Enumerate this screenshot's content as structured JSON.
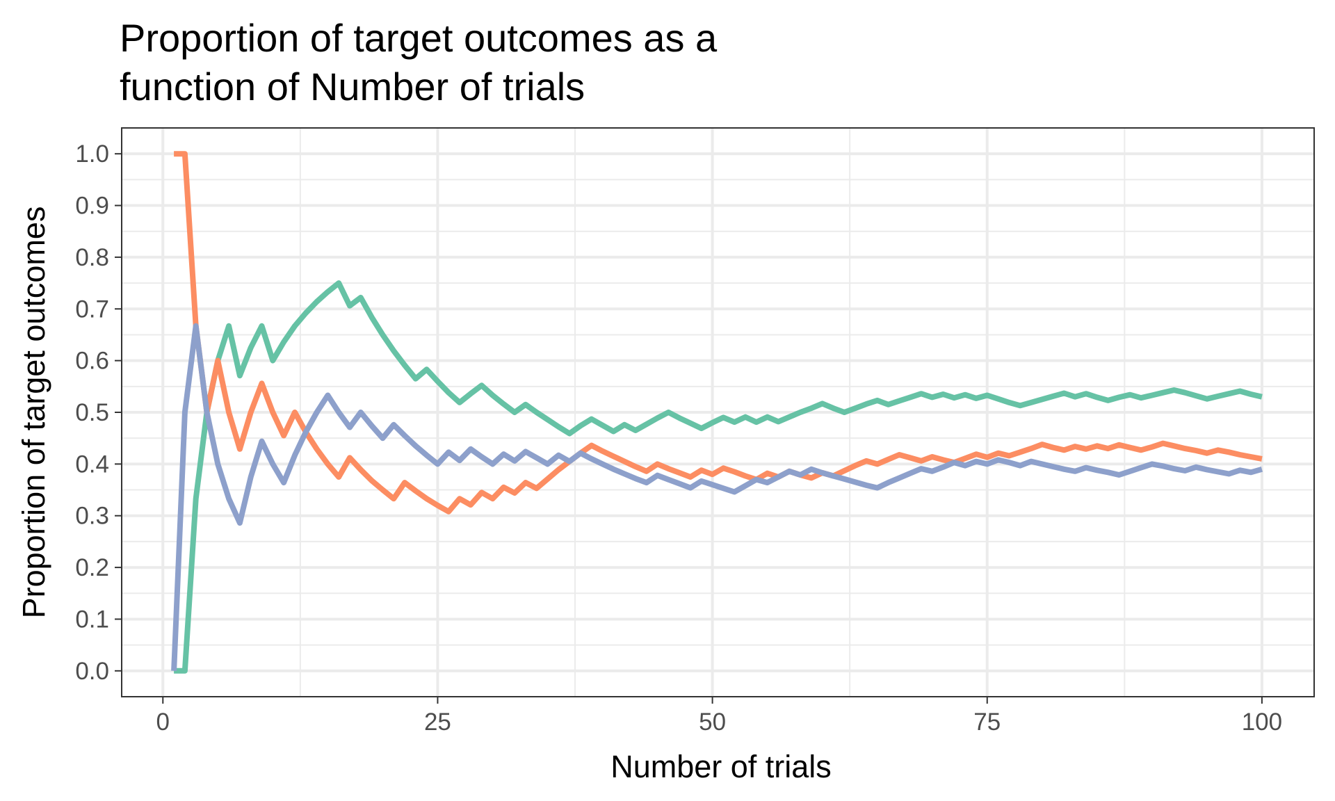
{
  "chart_data": {
    "type": "line",
    "title_lines": [
      "Proportion of target outcomes as a",
      "function of Number of trials"
    ],
    "xlabel": "Number of trials",
    "ylabel": "Proportion of target outcomes",
    "xlim": [
      -3.75,
      104.75
    ],
    "ylim": [
      -0.05,
      1.05
    ],
    "x_ticks": [
      0,
      25,
      50,
      75,
      100
    ],
    "x_tick_labels": [
      "0",
      "25",
      "50",
      "75",
      "100"
    ],
    "y_ticks": [
      0.0,
      0.1,
      0.2,
      0.3,
      0.4,
      0.5,
      0.6,
      0.7,
      0.8,
      0.9,
      1.0
    ],
    "y_tick_labels": [
      "0.0",
      "0.1",
      "0.2",
      "0.3",
      "0.4",
      "0.5",
      "0.6",
      "0.7",
      "0.8",
      "0.9",
      "1.0"
    ],
    "grid": true,
    "legend": "none",
    "series": [
      {
        "color": "#66C2A5",
        "x": [
          1,
          2,
          3,
          4,
          5,
          6,
          7,
          8,
          9,
          10,
          11,
          12,
          13,
          14,
          15,
          16,
          17,
          18,
          19,
          20,
          21,
          22,
          23,
          24,
          25,
          26,
          27,
          28,
          29,
          30,
          31,
          32,
          33,
          34,
          35,
          36,
          37,
          38,
          39,
          40,
          41,
          42,
          43,
          44,
          45,
          46,
          47,
          48,
          49,
          50,
          51,
          52,
          53,
          54,
          55,
          56,
          57,
          58,
          59,
          60,
          61,
          62,
          63,
          64,
          65,
          66,
          67,
          68,
          69,
          70,
          71,
          72,
          73,
          74,
          75,
          76,
          77,
          78,
          79,
          80,
          81,
          82,
          83,
          84,
          85,
          86,
          87,
          88,
          89,
          90,
          91,
          92,
          93,
          94,
          95,
          96,
          97,
          98,
          99,
          100
        ],
        "y": [
          0,
          0,
          0.333,
          0.5,
          0.6,
          0.667,
          0.571,
          0.625,
          0.667,
          0.6,
          0.636,
          0.667,
          0.692,
          0.714,
          0.733,
          0.75,
          0.706,
          0.722,
          0.684,
          0.65,
          0.619,
          0.591,
          0.565,
          0.583,
          0.56,
          0.538,
          0.519,
          0.536,
          0.552,
          0.533,
          0.516,
          0.5,
          0.515,
          0.5,
          0.486,
          0.472,
          0.459,
          0.474,
          0.487,
          0.475,
          0.463,
          0.476,
          0.465,
          0.477,
          0.489,
          0.5,
          0.489,
          0.479,
          0.469,
          0.48,
          0.49,
          0.481,
          0.491,
          0.481,
          0.491,
          0.482,
          0.491,
          0.5,
          0.508,
          0.517,
          0.508,
          0.5,
          0.508,
          0.516,
          0.523,
          0.515,
          0.522,
          0.529,
          0.536,
          0.529,
          0.535,
          0.528,
          0.534,
          0.527,
          0.533,
          0.526,
          0.519,
          0.513,
          0.519,
          0.525,
          0.531,
          0.537,
          0.53,
          0.536,
          0.529,
          0.523,
          0.529,
          0.534,
          0.528,
          0.533,
          0.538,
          0.543,
          0.538,
          0.532,
          0.526,
          0.531,
          0.536,
          0.541,
          0.535,
          0.53
        ]
      },
      {
        "color": "#FC8D62",
        "x": [
          1,
          2,
          3,
          4,
          5,
          6,
          7,
          8,
          9,
          10,
          11,
          12,
          13,
          14,
          15,
          16,
          17,
          18,
          19,
          20,
          21,
          22,
          23,
          24,
          25,
          26,
          27,
          28,
          29,
          30,
          31,
          32,
          33,
          34,
          35,
          36,
          37,
          38,
          39,
          40,
          41,
          42,
          43,
          44,
          45,
          46,
          47,
          48,
          49,
          50,
          51,
          52,
          53,
          54,
          55,
          56,
          57,
          58,
          59,
          60,
          61,
          62,
          63,
          64,
          65,
          66,
          67,
          68,
          69,
          70,
          71,
          72,
          73,
          74,
          75,
          76,
          77,
          78,
          79,
          80,
          81,
          82,
          83,
          84,
          85,
          86,
          87,
          88,
          89,
          90,
          91,
          92,
          93,
          94,
          95,
          96,
          97,
          98,
          99,
          100
        ],
        "y": [
          1,
          1,
          0.667,
          0.5,
          0.6,
          0.5,
          0.429,
          0.5,
          0.556,
          0.5,
          0.455,
          0.5,
          0.462,
          0.429,
          0.4,
          0.375,
          0.412,
          0.389,
          0.368,
          0.35,
          0.333,
          0.364,
          0.348,
          0.333,
          0.32,
          0.308,
          0.333,
          0.321,
          0.345,
          0.333,
          0.355,
          0.344,
          0.364,
          0.353,
          0.371,
          0.389,
          0.405,
          0.421,
          0.436,
          0.425,
          0.415,
          0.405,
          0.395,
          0.386,
          0.4,
          0.391,
          0.383,
          0.375,
          0.388,
          0.38,
          0.392,
          0.385,
          0.377,
          0.37,
          0.382,
          0.375,
          0.386,
          0.379,
          0.373,
          0.383,
          0.377,
          0.387,
          0.397,
          0.406,
          0.4,
          0.409,
          0.418,
          0.412,
          0.406,
          0.414,
          0.408,
          0.403,
          0.411,
          0.419,
          0.413,
          0.421,
          0.416,
          0.423,
          0.43,
          0.438,
          0.432,
          0.427,
          0.434,
          0.429,
          0.435,
          0.43,
          0.437,
          0.432,
          0.427,
          0.433,
          0.44,
          0.435,
          0.43,
          0.426,
          0.421,
          0.427,
          0.423,
          0.418,
          0.414,
          0.41
        ]
      },
      {
        "color": "#8DA0CB",
        "x": [
          1,
          2,
          3,
          4,
          5,
          6,
          7,
          8,
          9,
          10,
          11,
          12,
          13,
          14,
          15,
          16,
          17,
          18,
          19,
          20,
          21,
          22,
          23,
          24,
          25,
          26,
          27,
          28,
          29,
          30,
          31,
          32,
          33,
          34,
          35,
          36,
          37,
          38,
          39,
          40,
          41,
          42,
          43,
          44,
          45,
          46,
          47,
          48,
          49,
          50,
          51,
          52,
          53,
          54,
          55,
          56,
          57,
          58,
          59,
          60,
          61,
          62,
          63,
          64,
          65,
          66,
          67,
          68,
          69,
          70,
          71,
          72,
          73,
          74,
          75,
          76,
          77,
          78,
          79,
          80,
          81,
          82,
          83,
          84,
          85,
          86,
          87,
          88,
          89,
          90,
          91,
          92,
          93,
          94,
          95,
          96,
          97,
          98,
          99,
          100
        ],
        "y": [
          0,
          0.5,
          0.667,
          0.5,
          0.4,
          0.333,
          0.286,
          0.375,
          0.444,
          0.4,
          0.364,
          0.417,
          0.462,
          0.5,
          0.533,
          0.5,
          0.471,
          0.5,
          0.474,
          0.45,
          0.476,
          0.455,
          0.435,
          0.417,
          0.4,
          0.423,
          0.407,
          0.429,
          0.414,
          0.4,
          0.419,
          0.406,
          0.424,
          0.412,
          0.4,
          0.417,
          0.405,
          0.421,
          0.41,
          0.4,
          0.39,
          0.381,
          0.372,
          0.364,
          0.378,
          0.37,
          0.362,
          0.354,
          0.367,
          0.36,
          0.353,
          0.346,
          0.358,
          0.37,
          0.364,
          0.375,
          0.386,
          0.379,
          0.39,
          0.383,
          0.377,
          0.371,
          0.365,
          0.359,
          0.354,
          0.364,
          0.373,
          0.382,
          0.391,
          0.386,
          0.394,
          0.403,
          0.397,
          0.405,
          0.4,
          0.408,
          0.403,
          0.397,
          0.405,
          0.4,
          0.395,
          0.39,
          0.386,
          0.393,
          0.388,
          0.384,
          0.379,
          0.386,
          0.393,
          0.4,
          0.396,
          0.391,
          0.387,
          0.394,
          0.389,
          0.385,
          0.381,
          0.388,
          0.384,
          0.39
        ]
      }
    ]
  }
}
